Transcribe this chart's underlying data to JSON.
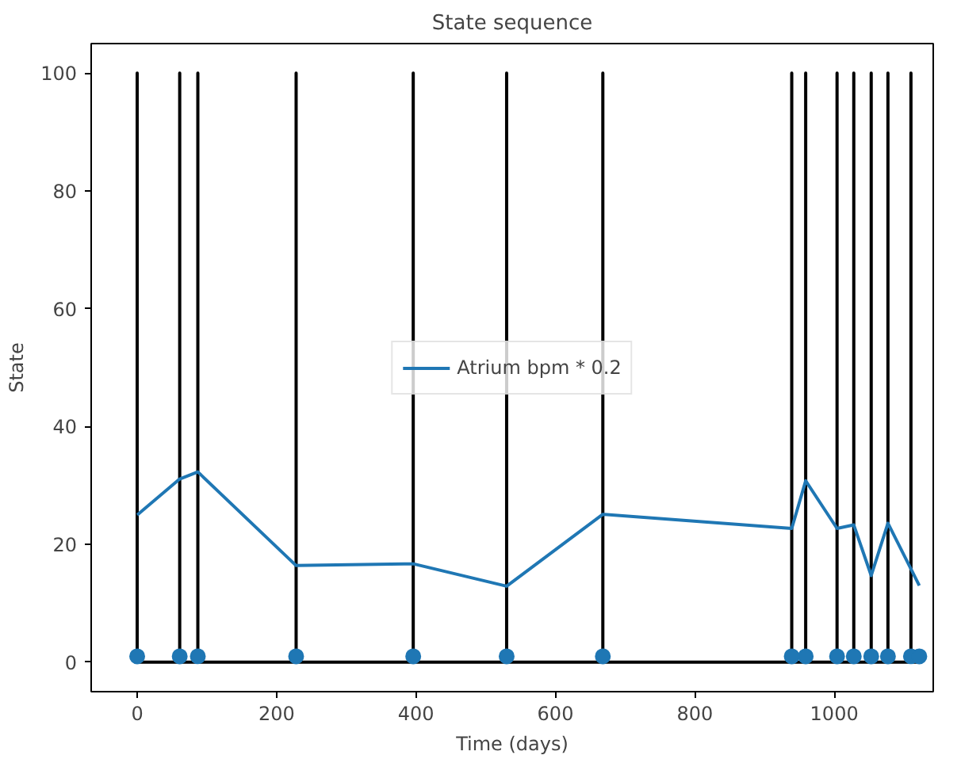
{
  "chart_data": {
    "type": "line",
    "title": "State sequence",
    "xlabel": "Time (days)",
    "ylabel": "State",
    "xlim": [
      -66,
      1142
    ],
    "ylim": [
      -5,
      105
    ],
    "xticks": [
      0,
      200,
      400,
      600,
      800,
      1000
    ],
    "yticks": [
      0,
      20,
      40,
      60,
      80,
      100
    ],
    "grid": false,
    "legend": "center",
    "marker": "none",
    "line_style": "solid",
    "series": [
      {
        "color": "#000000",
        "x": [
          0,
          0,
          0,
          61,
          61,
          61,
          87,
          87,
          87,
          228,
          228,
          228,
          396,
          396,
          396,
          530,
          530,
          530,
          668,
          668,
          668,
          939,
          939,
          939,
          959,
          959,
          959,
          1004,
          1004,
          1004,
          1028,
          1028,
          1028,
          1053,
          1053,
          1053,
          1077,
          1077,
          1077,
          1110,
          1110,
          1110,
          1122
        ],
        "values": [
          0,
          100,
          0,
          0,
          100,
          0,
          0,
          100,
          0,
          0,
          100,
          0,
          0,
          100,
          0,
          0,
          100,
          0,
          0,
          100,
          0,
          0,
          100,
          0,
          0,
          100,
          0,
          0,
          100,
          0,
          0,
          100,
          0,
          0,
          100,
          0,
          0,
          100,
          0,
          0,
          100,
          0,
          0
        ]
      },
      {
        "name": "Atrium bpm * 0.2",
        "color": "#1f77b4",
        "x": [
          0,
          61,
          87,
          228,
          396,
          530,
          668,
          939,
          959,
          1004,
          1028,
          1053,
          1077,
          1122
        ],
        "values": [
          25.0,
          31.1,
          32.3,
          16.4,
          16.7,
          12.9,
          25.1,
          22.7,
          30.8,
          22.7,
          23.3,
          14.7,
          23.6,
          13.0
        ]
      },
      {
        "type": "scatter",
        "color": "#1f77b4",
        "marker": "circle",
        "x": [
          0,
          61,
          87,
          228,
          396,
          530,
          668,
          939,
          959,
          1004,
          1028,
          1053,
          1077,
          1110,
          1122
        ],
        "values": [
          1,
          1,
          1,
          1,
          1,
          1,
          1,
          1,
          1,
          1,
          1,
          1,
          1,
          1,
          1
        ]
      }
    ]
  }
}
